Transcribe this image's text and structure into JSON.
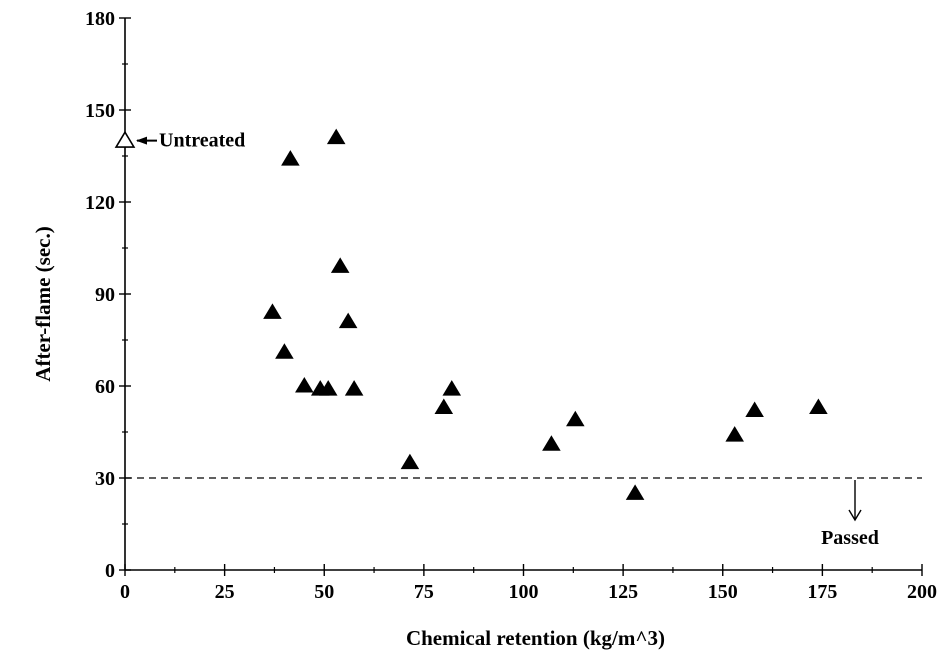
{
  "chart_data": {
    "type": "scatter",
    "xlabel": "Chemical retention (kg/m^3)",
    "ylabel": "After-flame (sec.)",
    "xlim": [
      0,
      200
    ],
    "ylim": [
      0,
      180
    ],
    "x_ticks": [
      0,
      25,
      50,
      75,
      100,
      125,
      150,
      175,
      200
    ],
    "y_ticks": [
      0,
      30,
      60,
      90,
      120,
      150,
      180
    ],
    "grid": false,
    "series": [
      {
        "name": "",
        "marker": "filled-triangle",
        "color": "#000000",
        "points": [
          [
            37,
            84
          ],
          [
            40,
            71
          ],
          [
            41.5,
            134
          ],
          [
            45,
            60
          ],
          [
            49,
            59
          ],
          [
            51,
            59
          ],
          [
            53,
            141
          ],
          [
            54,
            99
          ],
          [
            56,
            81
          ],
          [
            57.5,
            59
          ],
          [
            71.5,
            35
          ],
          [
            80,
            53
          ],
          [
            82,
            59
          ],
          [
            107,
            41
          ],
          [
            113,
            49
          ],
          [
            128,
            25
          ],
          [
            153,
            44
          ],
          [
            158,
            52
          ],
          [
            174,
            53
          ]
        ]
      },
      {
        "name": "Untreated",
        "marker": "open-triangle",
        "color": "#000000",
        "points": [
          [
            0,
            140
          ]
        ]
      }
    ],
    "threshold": {
      "y": 30,
      "style": "dashed"
    },
    "annotations": {
      "untreated": "Untreated",
      "passed": "Passed"
    }
  }
}
